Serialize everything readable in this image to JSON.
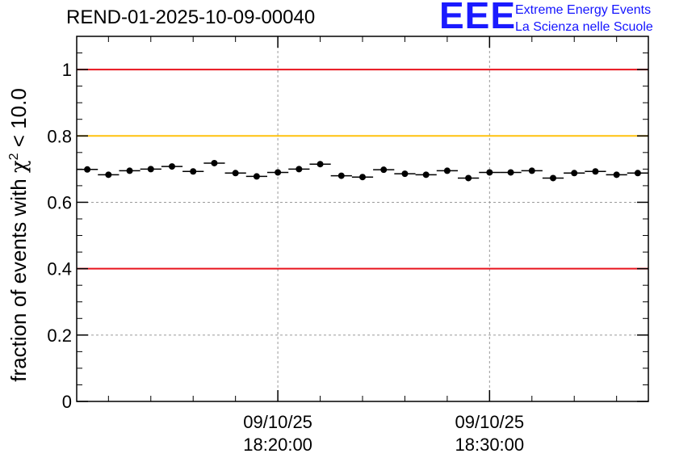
{
  "title": "REND-01-2025-10-09-00040",
  "logo": {
    "mark": "EEE",
    "line1": "Extreme Energy Events",
    "line2": "La Scienza nelle Scuole"
  },
  "colors": {
    "red": "#e8141e",
    "yellow": "#ffc20e",
    "marker": "#000000",
    "grid": "#9a9a9a",
    "logo": "#1414ff"
  },
  "chart_data": {
    "type": "scatter",
    "title": "REND-01-2025-10-09-00040",
    "xlabel": "",
    "ylabel": "fraction of events with χ² < 10.0",
    "ylabel_parts": {
      "prefix": "fraction of events with ",
      "symbol": "χ",
      "sup": "2",
      "suffix": " < 10.0"
    },
    "ylim": [
      0,
      1.1
    ],
    "yticks": [
      0,
      0.2,
      0.4,
      0.6,
      0.8,
      1
    ],
    "ytick_labels": [
      "0",
      "0.2",
      "0.4",
      "0.6",
      "0.8",
      "1"
    ],
    "xlim_minutes": [
      0,
      27
    ],
    "xticks_minutes": [
      9.5,
      19.5
    ],
    "xtick_labels": [
      [
        "09/10/25",
        "18:20:00"
      ],
      [
        "09/10/25",
        "18:30:00"
      ]
    ],
    "x_center_minutes": [
      0.5,
      1.5,
      2.5,
      3.5,
      4.5,
      5.5,
      6.5,
      7.5,
      8.5,
      9.5,
      10.5,
      11.5,
      12.5,
      13.5,
      14.5,
      15.5,
      16.5,
      17.5,
      18.5,
      19.5,
      20.5,
      21.5,
      22.5,
      23.5,
      24.5,
      25.5,
      26.5
    ],
    "x_halfwidth_minutes": 0.5,
    "values": [
      0.699,
      0.683,
      0.695,
      0.7,
      0.708,
      0.693,
      0.718,
      0.688,
      0.678,
      0.69,
      0.7,
      0.715,
      0.68,
      0.676,
      0.698,
      0.686,
      0.683,
      0.695,
      0.673,
      0.69,
      0.69,
      0.695,
      0.673,
      0.688,
      0.693,
      0.683,
      0.688
    ],
    "reference_lines": [
      {
        "y": 1.0,
        "color": "#e8141e"
      },
      {
        "y": 0.8,
        "color": "#ffc20e"
      },
      {
        "y": 0.4,
        "color": "#e8141e"
      }
    ],
    "grid": true,
    "legend": "none"
  }
}
